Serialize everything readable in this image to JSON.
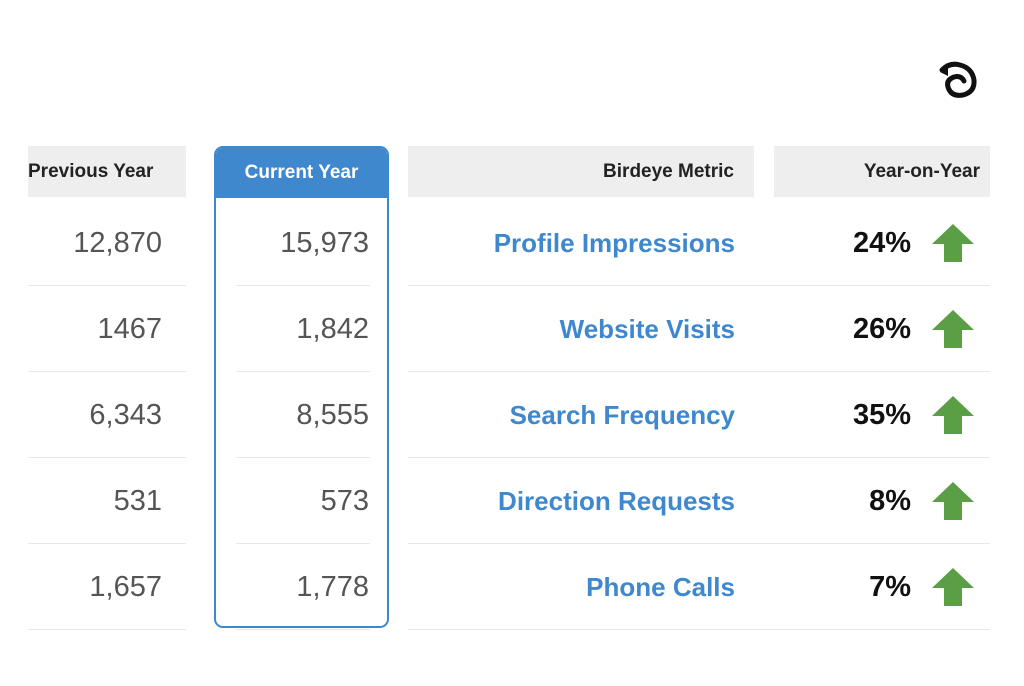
{
  "chart_data": {
    "type": "table",
    "columns": [
      "Previous Year",
      "Current Year",
      "Birdeye Metric",
      "Year-on-Year"
    ],
    "rows": [
      {
        "previous": "12,870",
        "current": "15,973",
        "metric": "Profile Impressions",
        "yoy": "24%",
        "trend": "up"
      },
      {
        "previous": "1467",
        "current": "1,842",
        "metric": "Website Visits",
        "yoy": "26%",
        "trend": "up"
      },
      {
        "previous": "6,343",
        "current": "8,555",
        "metric": "Search Frequency",
        "yoy": "35%",
        "trend": "up"
      },
      {
        "previous": "531",
        "current": "573",
        "metric": "Direction Requests",
        "yoy": "8%",
        "trend": "up"
      },
      {
        "previous": "1,657",
        "current": "1,778",
        "metric": "Phone Calls",
        "yoy": "7%",
        "trend": "up"
      }
    ]
  },
  "colors": {
    "accent": "#3f88cd",
    "arrow": "#5a9e45",
    "header_bg": "#eeeeee"
  },
  "logo": {
    "icon": "birdeye-logo-icon"
  }
}
